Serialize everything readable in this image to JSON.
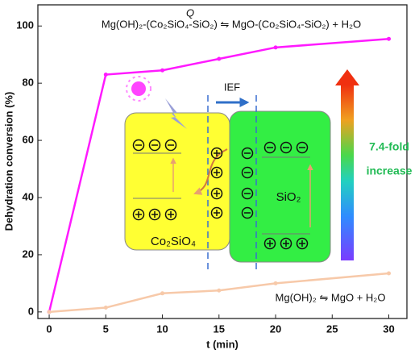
{
  "chart_data": {
    "type": "line",
    "x_label": "t (min)",
    "y_label": "Dehydration conversion (%)",
    "x": [
      0,
      5,
      10,
      15,
      20,
      30
    ],
    "series": [
      {
        "color": "#ff1aff",
        "values": [
          0,
          83,
          84.5,
          88.5,
          92.5,
          95.5
        ]
      },
      {
        "color": "#f7c9a9",
        "values": [
          0,
          1.5,
          6.5,
          7.5,
          10,
          13.5
        ]
      }
    ],
    "xlim": [
      -1,
      31.6
    ],
    "ylim": [
      -2.3,
      107.4
    ],
    "xticks": [
      0,
      5,
      10,
      15,
      20,
      25,
      30
    ],
    "yticks": [
      0,
      20,
      40,
      60,
      80,
      100
    ],
    "annotations": [
      {
        "text": "Mg(OH)₂-(Co₂SiO₄-SiO₂) ⇋ MgO-(Co₂SiO₄-SiO₂) + H₂O",
        "above": "Q"
      },
      {
        "text": "Mg(OH)₂ ⇋ MgO + H₂O"
      }
    ]
  },
  "diagram": {
    "left_label": "Co₂SiO₄",
    "right_label": "SiO₂",
    "field_label": "IEF",
    "gradient_label": [
      "7.4-fold",
      "increase"
    ]
  }
}
